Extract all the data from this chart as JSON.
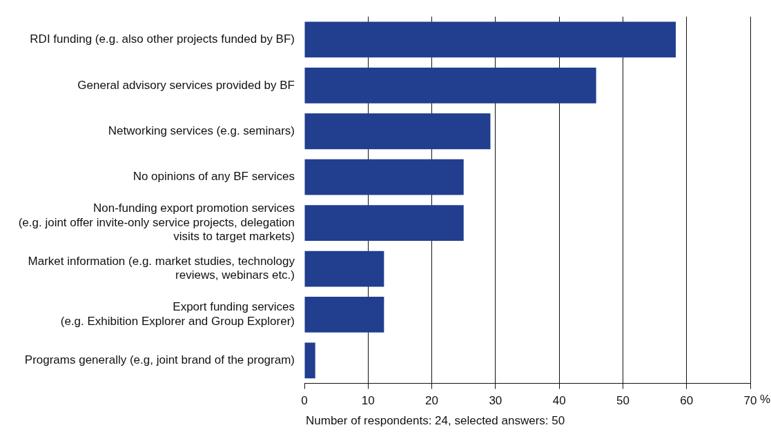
{
  "chart_data": {
    "type": "bar",
    "orientation": "horizontal",
    "categories": [
      "RDI funding (e.g. also other projects funded by BF)",
      "General advisory services provided by BF",
      "Networking services (e.g. seminars)",
      "No opinions of any BF services",
      "Non-funding export promotion services\n(e.g. joint offer invite-only service projects, delegation\nvisits to target markets)",
      "Market information (e.g. market studies, technology\nreviews, webinars etc.)",
      "Export funding services\n(e.g. Exhibition Explorer and Group Explorer)",
      "Programs generally (e.g, joint brand of the program)"
    ],
    "values": [
      58.3,
      45.8,
      29.2,
      25,
      25,
      12.5,
      12.5,
      1.7
    ],
    "color": "#213e8f",
    "xlim": [
      0,
      70
    ],
    "xticks": [
      0,
      10,
      20,
      30,
      40,
      50,
      60,
      70
    ],
    "xlabel": "%",
    "grid": "x",
    "annotations": [
      "Number of respondents: 24, selected answers: 50"
    ]
  }
}
